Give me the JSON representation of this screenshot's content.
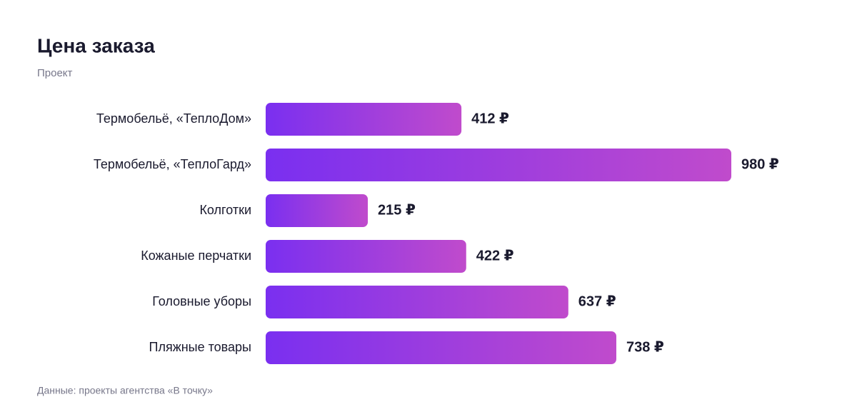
{
  "chart_data": {
    "type": "barh",
    "title": "Цена заказа",
    "subtitle": "Проект",
    "categories": [
      "Термобельё, «ТеплоДом»",
      "Термобельё, «ТеплоГард»",
      "Колготки",
      "Кожаные перчатки",
      "Головные уборы",
      "Пляжные товары"
    ],
    "values": [
      412,
      980,
      215,
      422,
      637,
      738
    ],
    "value_labels": [
      "412 ₽",
      "980 ₽",
      "215 ₽",
      "422 ₽",
      "637 ₽",
      "738 ₽"
    ],
    "colors": [
      "#7a2ff0",
      "#c04bcc"
    ],
    "source": "Данные: проекты агентства «В точку»"
  }
}
